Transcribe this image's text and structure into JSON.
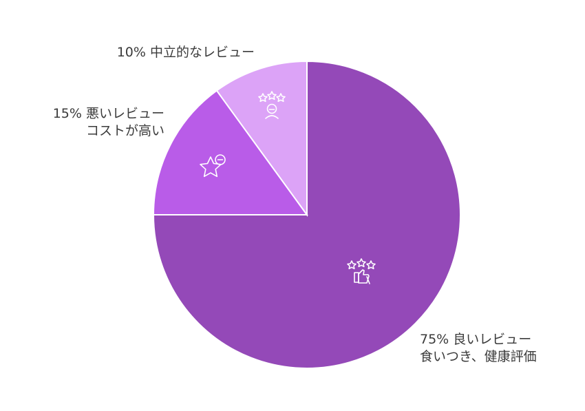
{
  "chart_data": {
    "type": "pie",
    "slices": [
      {
        "value": 75,
        "label_lines": [
          "75% 良いレビュー",
          "食いつき、健康評価"
        ],
        "color": "#9449b8",
        "icon": "stars-thumbs-up-icon"
      },
      {
        "value": 15,
        "label_lines": [
          "15% 悪いレビュー",
          "コストが高い"
        ],
        "color": "#b95ce8",
        "icon": "star-minus-icon"
      },
      {
        "value": 10,
        "label_lines": [
          "10% 中立的なレビュー"
        ],
        "color": "#dca3f7",
        "icon": "stars-person-neutral-icon"
      }
    ]
  }
}
